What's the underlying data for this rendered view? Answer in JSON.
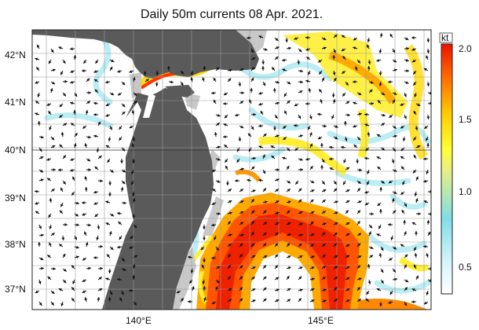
{
  "title": "Daily 50m currents 08 Apr. 2021.",
  "axes": {
    "lat_labels": [
      "42°N",
      "41°N",
      "40°N",
      "39°N",
      "38°N",
      "37°N"
    ],
    "lon_labels": [
      "140°E",
      "145°E"
    ]
  },
  "colorbar": {
    "unit": "kt",
    "ticks": [
      "2.0",
      "1.5",
      "1.0",
      "0.5"
    ],
    "stops": [
      "#ffffff",
      "#bfeef5",
      "#80dde8",
      "#ffff66",
      "#ffdd00",
      "#ff9900",
      "#ff3300",
      "#dd1100"
    ]
  },
  "colors": {
    "land": "#5a5a5a",
    "shelf": "#c8c8c8",
    "sea": "#ffffff",
    "arrow": "#111111"
  }
}
